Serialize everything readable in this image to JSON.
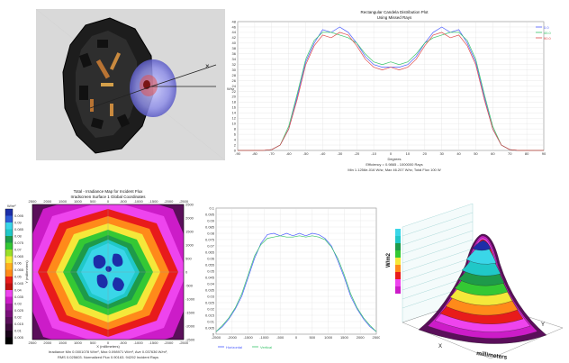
{
  "candela_plot": {
    "title": "Rectangular Candela Distribution Plot",
    "subtitle": "Using Missed Rays",
    "ylabel": "W/sr",
    "xlabel": "Degrees",
    "footer1": "Efficiency = 0.9865 - 1000000 Rays",
    "footer2": "Min 1.1256e-016 W/sr, Max 46.207 W/sr, Total Flux 100 W",
    "legend": [
      "0.0",
      "45.0",
      "90.0"
    ],
    "legend_colors": [
      "#4a5bff",
      "#39c46a",
      "#e04a4a"
    ]
  },
  "irradiance_map": {
    "title1": "Total - Irradiance Map for Incident Flux",
    "title2": "Irradscreen Surface 1    Global Coordinates",
    "ylabel": "Y (millimeters)",
    "xlabel": "X (millimeters)",
    "footer1": "Irradiance Min 0.0001078 W/m², Max 0.098971 W/m², Ave 0.037636 W/m²,",
    "footer2": "RMS 0.025603. Normalized Flux 0.90163. 94292 Incident Rays",
    "colorbar_unit": "W/m²",
    "colorbar_labels": [
      "0.095",
      "0.09",
      "0.085",
      "0.08",
      "0.075",
      "0.07",
      "0.065",
      "0.06",
      "0.055",
      "0.05",
      "0.045",
      "0.04",
      "0.035",
      "0.03",
      "0.025",
      "0.02",
      "0.015",
      "0.01",
      "0.005"
    ],
    "x_ticks": [
      "2500",
      "2000",
      "1500",
      "1000",
      "500",
      "0",
      "-500",
      "-1000",
      "-1500",
      "-2000",
      "-2500"
    ],
    "y_ticks": [
      "2500",
      "2000",
      "1500",
      "1000",
      "500",
      "0",
      "-500",
      "-1000",
      "-1500",
      "-2000",
      "-2500"
    ]
  },
  "profile_plot": {
    "legend": [
      "Horizontal",
      "Vertical"
    ],
    "legend_colors": [
      "#4a5bff",
      "#39c46a"
    ]
  },
  "surface_plot": {
    "zlabel": "W/m2",
    "xlabel": "millimeters",
    "x_mark": "X",
    "y_mark": "Y"
  },
  "chart_data": [
    {
      "type": "line",
      "title": "Rectangular Candela Distribution Plot",
      "xlabel": "Degrees",
      "ylabel": "W/sr",
      "xlim": [
        -90,
        90
      ],
      "ylim": [
        0,
        48
      ],
      "x_ticks": [
        -90,
        -80,
        -70,
        -60,
        -50,
        -40,
        -30,
        -20,
        -10,
        0,
        10,
        20,
        30,
        40,
        50,
        60,
        70,
        80,
        90
      ],
      "y_ticks": [
        0,
        2,
        4,
        6,
        8,
        10,
        12,
        14,
        16,
        18,
        20,
        22,
        24,
        26,
        28,
        30,
        32,
        34,
        36,
        38,
        40,
        42,
        44,
        46,
        48
      ],
      "grid": true,
      "legend_position": "top-right",
      "x": [
        -90,
        -75,
        -70,
        -65,
        -60,
        -55,
        -50,
        -45,
        -40,
        -35,
        -30,
        -25,
        -20,
        -15,
        -10,
        -5,
        0,
        5,
        10,
        15,
        20,
        25,
        30,
        35,
        40,
        45,
        50,
        55,
        60,
        65,
        70,
        75,
        90
      ],
      "series": [
        {
          "name": "0.0",
          "values": [
            0,
            0,
            0.3,
            2,
            8,
            20,
            33,
            40,
            45,
            44,
            46,
            44,
            40,
            35,
            32,
            31,
            31,
            31,
            32,
            35,
            40,
            44,
            46,
            44,
            45,
            40,
            33,
            20,
            8,
            2,
            0.3,
            0,
            0
          ]
        },
        {
          "name": "45.0",
          "values": [
            0,
            0,
            0.3,
            2,
            9,
            21,
            34,
            41,
            44,
            44,
            43,
            42,
            40,
            36,
            33,
            32,
            33,
            32,
            33,
            36,
            40,
            42,
            43,
            44,
            44,
            41,
            34,
            21,
            9,
            2,
            0.3,
            0,
            0
          ]
        },
        {
          "name": "90.0",
          "values": [
            0,
            0,
            0.3,
            2,
            8,
            19,
            32,
            39,
            43,
            42,
            44,
            43,
            39,
            34,
            31,
            30,
            31,
            30,
            31,
            34,
            39,
            43,
            44,
            42,
            43,
            39,
            32,
            19,
            8,
            2,
            0.3,
            0,
            0
          ]
        }
      ]
    },
    {
      "type": "line",
      "xlim": [
        -2500,
        2500
      ],
      "ylim": [
        0,
        0.1
      ],
      "x_ticks": [
        -2500,
        -2000,
        -1500,
        -1000,
        -500,
        0,
        500,
        1000,
        1500,
        2000,
        2500
      ],
      "y_ticks": [
        0,
        0.005,
        0.01,
        0.015,
        0.02,
        0.025,
        0.03,
        0.035,
        0.04,
        0.045,
        0.05,
        0.055,
        0.06,
        0.065,
        0.07,
        0.075,
        0.08,
        0.085,
        0.09,
        0.095,
        0.1
      ],
      "grid": true,
      "legend_position": "bottom-left",
      "x": [
        -2500,
        -2300,
        -2100,
        -1900,
        -1700,
        -1500,
        -1300,
        -1100,
        -900,
        -700,
        -500,
        -300,
        -100,
        100,
        300,
        500,
        700,
        900,
        1100,
        1300,
        1500,
        1700,
        1900,
        2100,
        2300,
        2500
      ],
      "series": [
        {
          "name": "Horizontal",
          "values": [
            0.002,
            0.006,
            0.012,
            0.02,
            0.03,
            0.045,
            0.06,
            0.072,
            0.079,
            0.08,
            0.078,
            0.08,
            0.078,
            0.08,
            0.078,
            0.08,
            0.079,
            0.076,
            0.07,
            0.058,
            0.045,
            0.03,
            0.02,
            0.012,
            0.006,
            0.002
          ]
        },
        {
          "name": "Vertical",
          "values": [
            0.002,
            0.007,
            0.013,
            0.021,
            0.032,
            0.047,
            0.062,
            0.071,
            0.076,
            0.077,
            0.078,
            0.077,
            0.077,
            0.078,
            0.077,
            0.078,
            0.077,
            0.075,
            0.069,
            0.06,
            0.047,
            0.032,
            0.021,
            0.013,
            0.007,
            0.002
          ]
        }
      ]
    }
  ]
}
